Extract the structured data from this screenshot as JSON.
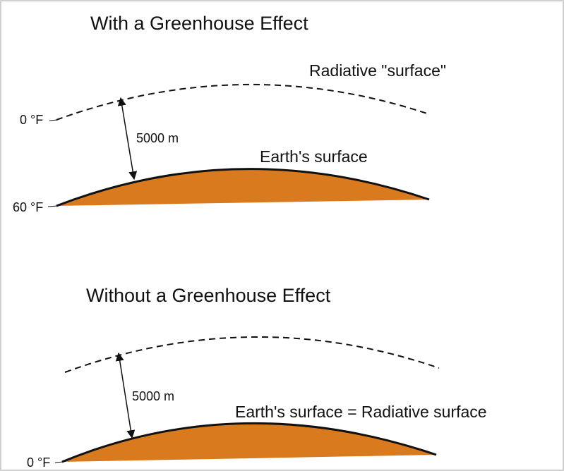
{
  "panels": [
    {
      "title": "With a Greenhouse Effect",
      "radiative_label": "Radiative \"surface\"",
      "top_temp": "0 °F",
      "height": "5000 m",
      "surface_label": "Earth's surface",
      "bottom_temp": "60 °F"
    },
    {
      "title": "Without a Greenhouse Effect",
      "height": "5000 m",
      "surface_label": "Earth's surface = Radiative surface",
      "bottom_temp": "0 °F"
    }
  ]
}
